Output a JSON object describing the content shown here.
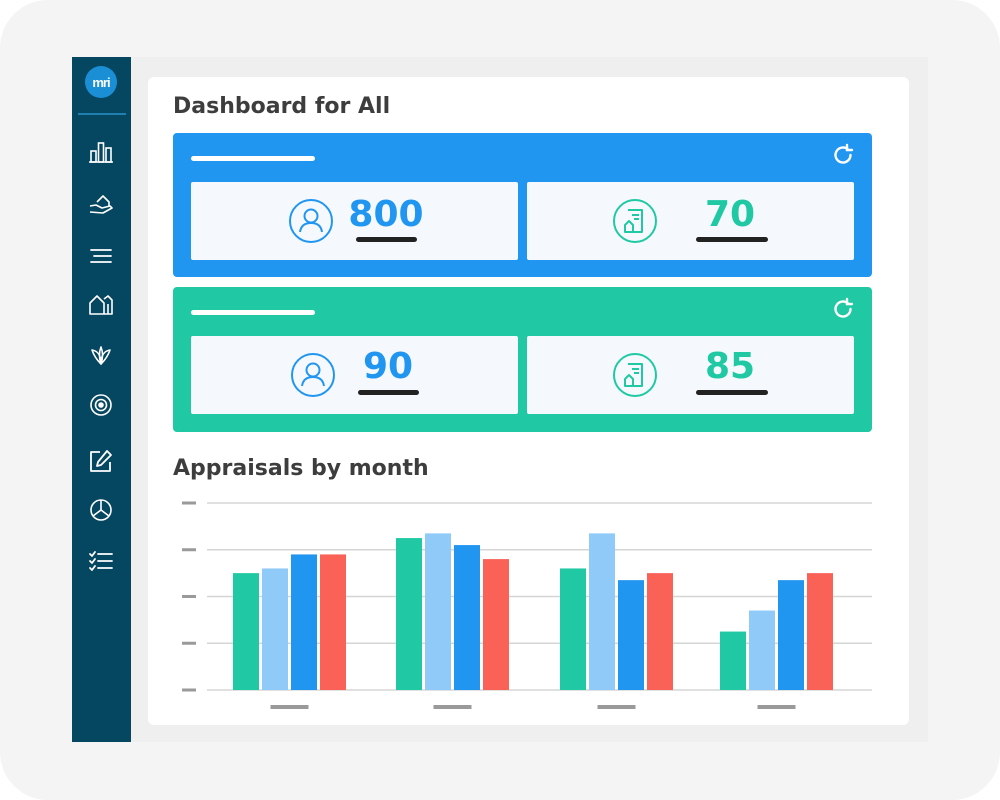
{
  "header": {
    "title": "Dashboard for All"
  },
  "logo": {
    "text": "mri"
  },
  "sidebar": {
    "icons": [
      "bar-chart-icon",
      "hand-house-icon",
      "menu-lines-icon",
      "houses-icon",
      "leaf-icon",
      "target-icon",
      "edit-icon",
      "pie-chart-icon",
      "checklist-icon"
    ]
  },
  "panels": [
    {
      "color": "#2196f0",
      "cards": [
        {
          "icon": "user-icon",
          "value": "800",
          "value_color": "#2196f0"
        },
        {
          "icon": "document-house-icon",
          "value": "70",
          "value_color": "#20c9a3"
        }
      ]
    },
    {
      "color": "#20c9a3",
      "cards": [
        {
          "icon": "user-icon",
          "value": "90",
          "value_color": "#2196f0"
        },
        {
          "icon": "document-house-icon",
          "value": "85",
          "value_color": "#20c9a3"
        }
      ]
    }
  ],
  "chart_section": {
    "title": "Appraisals by month"
  },
  "chart_data": {
    "type": "bar",
    "title": "",
    "xlabel": "",
    "ylabel": "",
    "ylim": [
      0,
      4
    ],
    "grid": true,
    "categories": [
      "",
      "",
      "",
      ""
    ],
    "series": [
      {
        "color": "#20c9a3",
        "values": [
          2.5,
          3.25,
          2.6,
          1.25
        ]
      },
      {
        "color": "#90caf9",
        "values": [
          2.6,
          3.35,
          3.35,
          1.7
        ]
      },
      {
        "color": "#2196f0",
        "values": [
          2.9,
          3.1,
          2.35,
          2.35
        ]
      },
      {
        "color": "#fa6157",
        "values": [
          2.9,
          2.8,
          2.5,
          2.5
        ]
      }
    ]
  }
}
